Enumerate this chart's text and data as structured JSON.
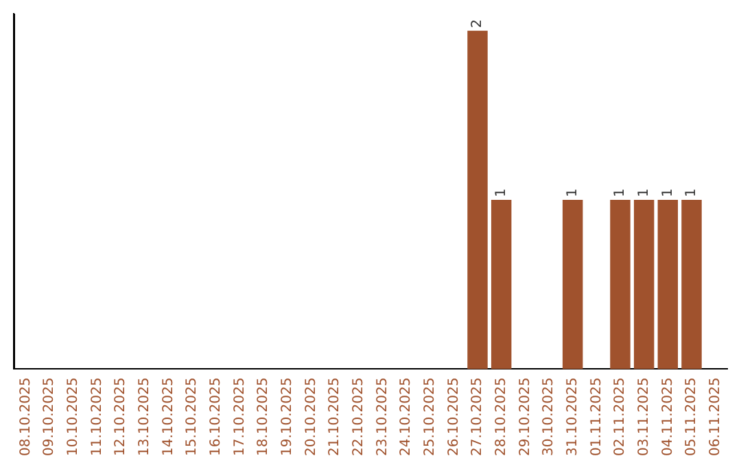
{
  "chart_data": {
    "type": "bar",
    "categories": [
      "08.10.2025",
      "09.10.2025",
      "10.10.2025",
      "11.10.2025",
      "12.10.2025",
      "13.10.2025",
      "14.10.2025",
      "15.10.2025",
      "16.10.2025",
      "17.10.2025",
      "18.10.2025",
      "19.10.2025",
      "20.10.2025",
      "21.10.2025",
      "22.10.2025",
      "23.10.2025",
      "24.10.2025",
      "25.10.2025",
      "26.10.2025",
      "27.10.2025",
      "28.10.2025",
      "29.10.2025",
      "30.10.2025",
      "31.10.2025",
      "01.11.2025",
      "02.11.2025",
      "03.11.2025",
      "04.11.2025",
      "05.11.2025",
      "06.11.2025"
    ],
    "values": [
      null,
      null,
      null,
      null,
      null,
      null,
      null,
      null,
      null,
      null,
      null,
      null,
      null,
      null,
      null,
      null,
      null,
      null,
      null,
      2,
      1,
      null,
      null,
      1,
      null,
      1,
      1,
      1,
      1,
      null
    ],
    "data_labels": true,
    "color": "#a0522d",
    "ylim": [
      0,
      2.1
    ],
    "tick_labels": "x",
    "grid": false,
    "legend": false
  }
}
